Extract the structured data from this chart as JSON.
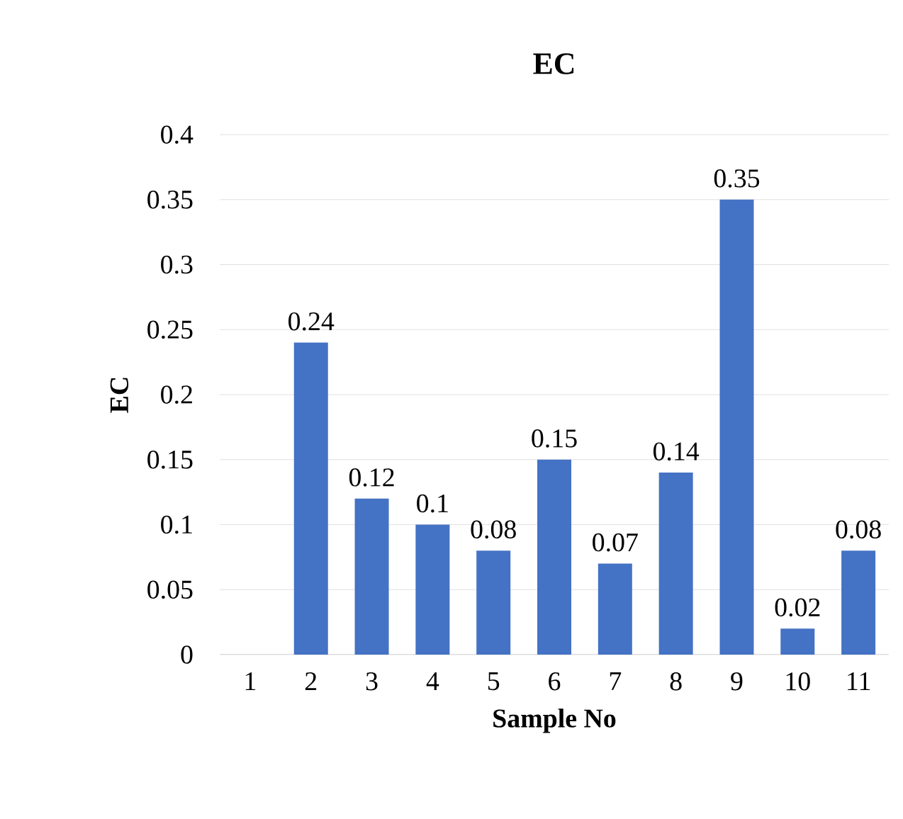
{
  "chart_data": {
    "type": "bar",
    "title": "EC",
    "xlabel": "Sample No",
    "ylabel": "EC",
    "categories": [
      "1",
      "2",
      "3",
      "4",
      "5",
      "6",
      "7",
      "8",
      "9",
      "10",
      "11"
    ],
    "values": [
      null,
      0.24,
      0.12,
      0.1,
      0.08,
      0.15,
      0.07,
      0.14,
      0.35,
      0.02,
      0.08
    ],
    "color": "#4472c4",
    "data_labels": true,
    "grid": "y",
    "ylim": [
      0,
      0.4
    ],
    "yticks": [
      0,
      0.05,
      0.1,
      0.15,
      0.2,
      0.25,
      0.3,
      0.35,
      0.4
    ]
  }
}
